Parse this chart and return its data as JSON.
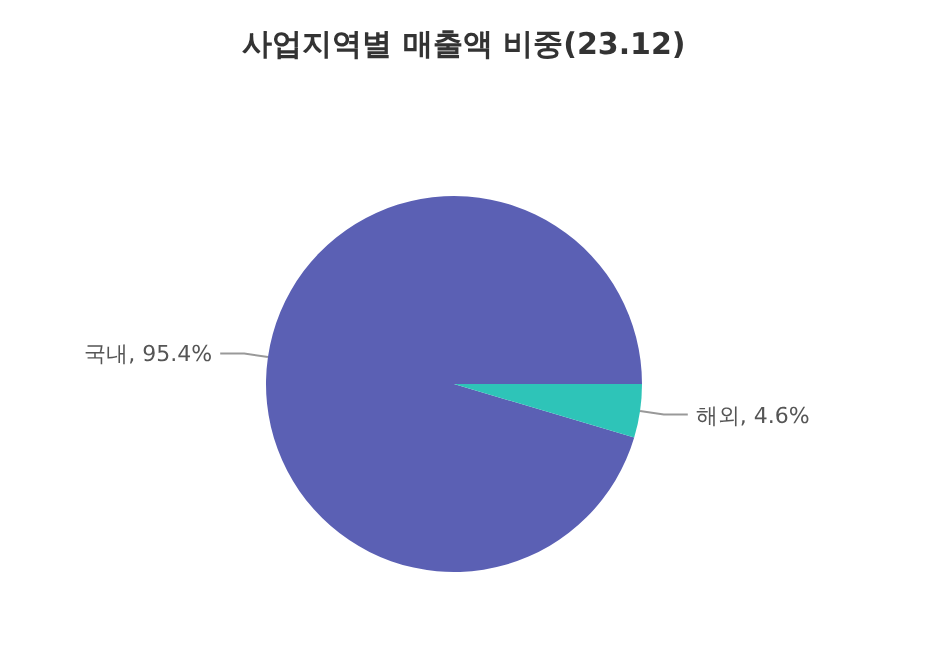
{
  "chart_data": {
    "type": "pie",
    "title": "사업지역별 매출액 비중(23.12)",
    "categories": [
      "국내",
      "해외"
    ],
    "values": [
      95.4,
      4.6
    ],
    "colors": [
      "#5b60b4",
      "#2ec4b8"
    ],
    "value_labels": [
      "95.4%",
      "4.6%"
    ],
    "legend": false
  }
}
